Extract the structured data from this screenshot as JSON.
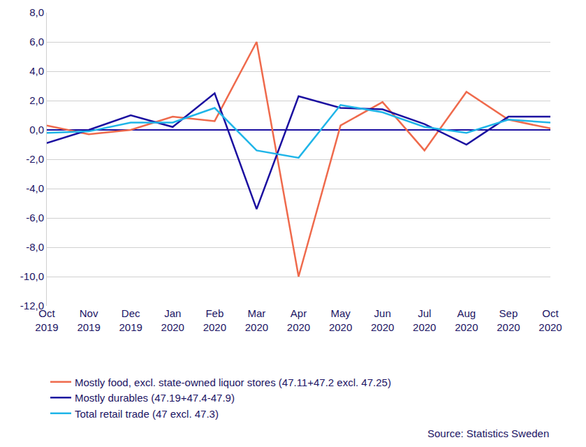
{
  "chart_data": {
    "type": "line",
    "categories": [
      "Oct 2019",
      "Nov 2019",
      "Dec 2019",
      "Jan 2020",
      "Feb 2020",
      "Mar 2020",
      "Apr 2020",
      "May 2020",
      "Jun 2020",
      "Jul 2020",
      "Aug 2020",
      "Sep 2020",
      "Oct 2020"
    ],
    "series": [
      {
        "name": "Mostly food, excl. state-owned liquor stores (47.11+47.2 excl. 47.25)",
        "color": "#ef6a4c",
        "values": [
          0.3,
          -0.3,
          0.0,
          0.9,
          0.6,
          6.0,
          -10.0,
          0.3,
          1.9,
          -1.4,
          2.6,
          0.7,
          0.1
        ]
      },
      {
        "name": "Mostly durables (47.19+47.4-47.9)",
        "color": "#1b0fa0",
        "values": [
          -0.9,
          0.0,
          1.0,
          0.2,
          2.5,
          -5.4,
          2.3,
          1.5,
          1.4,
          0.4,
          -1.0,
          0.9,
          0.9
        ]
      },
      {
        "name": "Total retail trade (47 excl. 47.3)",
        "color": "#1fb5e8",
        "values": [
          -0.2,
          -0.1,
          0.5,
          0.5,
          1.5,
          -1.4,
          -1.9,
          1.7,
          1.2,
          0.2,
          -0.2,
          0.7,
          0.5
        ]
      }
    ],
    "ylim": [
      -12,
      8
    ],
    "yticks": [
      {
        "value": -12,
        "label": "-12,0"
      },
      {
        "value": -10,
        "label": "-10,0"
      },
      {
        "value": -8,
        "label": "-8,0"
      },
      {
        "value": -6,
        "label": "-6,0"
      },
      {
        "value": -4,
        "label": "-4,0"
      },
      {
        "value": -2,
        "label": "-2,0"
      },
      {
        "value": 0,
        "label": "0,0"
      },
      {
        "value": 2,
        "label": "2,0"
      },
      {
        "value": 4,
        "label": "4,0"
      },
      {
        "value": 6,
        "label": "6,0"
      },
      {
        "value": 8,
        "label": "8,0"
      }
    ],
    "grid": true,
    "legend": "bottom left",
    "annotations": [
      "Source: Statistics Sweden"
    ]
  }
}
